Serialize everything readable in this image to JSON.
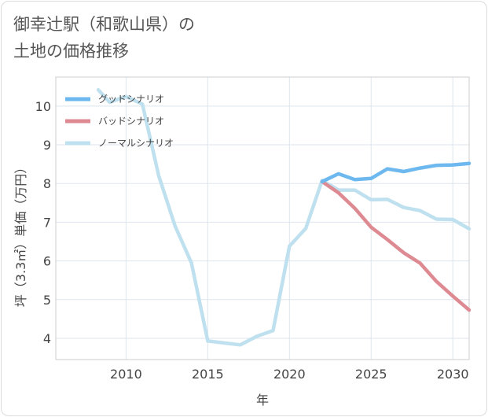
{
  "chart_data": {
    "type": "line",
    "title": "御幸辻駅（和歌山県）の\n土地の価格推移",
    "xlabel": "年",
    "ylabel": "坪（3.3㎡）単価（万円）",
    "xlim": [
      2005.7,
      2031
    ],
    "ylim": [
      3.45,
      10.75
    ],
    "xticks": [
      2010,
      2015,
      2020,
      2025,
      2030
    ],
    "yticks": [
      4,
      5,
      6,
      7,
      8,
      9,
      10
    ],
    "grid": true,
    "legend": "top-left",
    "series": [
      {
        "name": "グッドシナリオ",
        "color": "#6db8ee",
        "x": [
          2022,
          2023,
          2024,
          2025,
          2026,
          2027,
          2028,
          2029,
          2030,
          2031
        ],
        "y": [
          8.05,
          8.25,
          8.1,
          8.13,
          8.38,
          8.31,
          8.4,
          8.47,
          8.48,
          8.52
        ]
      },
      {
        "name": "バッドシナリオ",
        "color": "#dd8a92",
        "x": [
          2022,
          2023,
          2024,
          2025,
          2026,
          2027,
          2028,
          2029,
          2030,
          2031
        ],
        "y": [
          8.05,
          7.76,
          7.36,
          6.87,
          6.55,
          6.21,
          5.94,
          5.47,
          5.09,
          4.73
        ]
      },
      {
        "name": "ノーマルシナリオ",
        "color": "#bfe0ee",
        "x": [
          2008.3,
          2009,
          2010,
          2011,
          2012,
          2013,
          2014,
          2015,
          2016,
          2017,
          2018,
          2019,
          2020,
          2021,
          2022,
          2023,
          2024,
          2025,
          2026,
          2027,
          2028,
          2029,
          2030,
          2031
        ],
        "y": [
          10.42,
          10.1,
          10.25,
          10.05,
          8.2,
          6.9,
          5.95,
          3.93,
          3.88,
          3.83,
          4.05,
          4.2,
          6.38,
          6.84,
          8.08,
          7.83,
          7.83,
          7.58,
          7.59,
          7.38,
          7.3,
          7.08,
          7.07,
          6.83
        ]
      }
    ]
  }
}
